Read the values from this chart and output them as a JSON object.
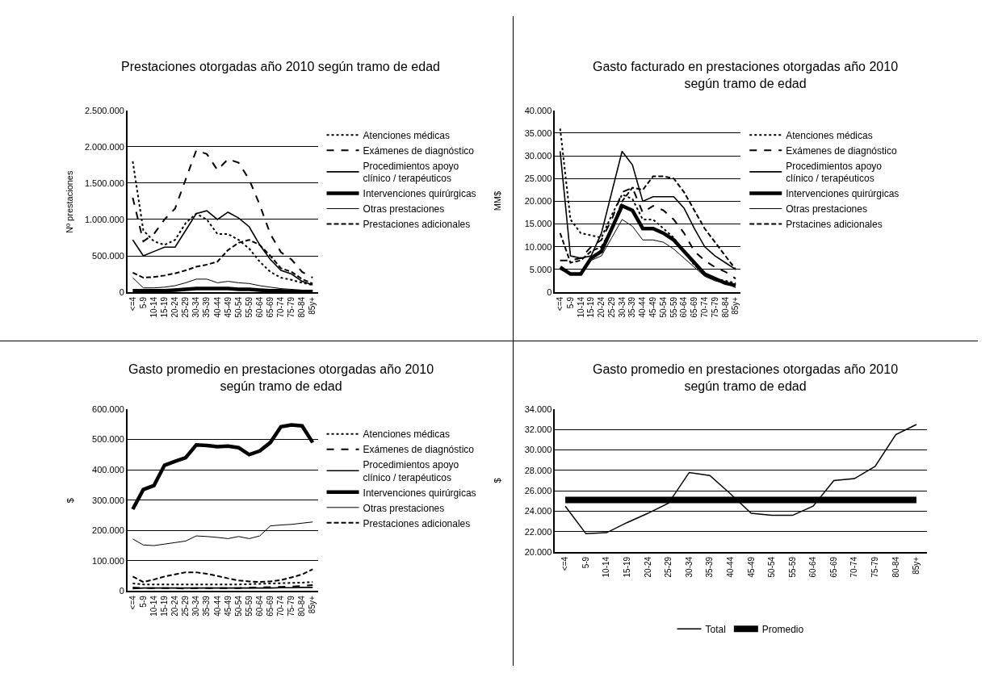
{
  "chart_data": [
    {
      "type": "line",
      "title": "Prestaciones otorgadas año 2010 según tramo de edad",
      "ylabel": "Nº prestaciones",
      "categories": [
        "<=4",
        "5-9",
        "10-14",
        "15-19",
        "20-24",
        "25-29",
        "30-34",
        "35-39",
        "40-44",
        "45-49",
        "50-54",
        "55-59",
        "60-64",
        "65-69",
        "70-74",
        "75-79",
        "80-84",
        "85y+"
      ],
      "ylim": [
        0,
        2500000
      ],
      "yticks": [
        {
          "value": 0,
          "label": "0"
        },
        {
          "value": 500000,
          "label": "500.000"
        },
        {
          "value": 1000000,
          "label": "1.000.000"
        },
        {
          "value": 1500000,
          "label": "1.500.000"
        },
        {
          "value": 2000000,
          "label": "2.000.000"
        },
        {
          "value": 2500000,
          "label": "2.500.000"
        }
      ],
      "grid": "y",
      "legend": "right",
      "marker": "none",
      "series": [
        {
          "name": "Atenciones médicas",
          "color": "#000000",
          "line_style": "dotted",
          "values": [
            1800000,
            850000,
            700000,
            650000,
            720000,
            950000,
            1080000,
            1000000,
            800000,
            800000,
            720000,
            600000,
            420000,
            280000,
            200000,
            170000,
            130000,
            100000
          ]
        },
        {
          "name": "Exámenes de diagnóstico",
          "color": "#000000",
          "line_style": "dashed",
          "values": [
            1300000,
            700000,
            800000,
            1000000,
            1150000,
            1550000,
            1950000,
            1900000,
            1680000,
            1830000,
            1780000,
            1550000,
            1200000,
            800000,
            550000,
            450000,
            280000,
            200000
          ]
        },
        {
          "name": "Procedimientos apoyo\nclínico / terapéuticos",
          "color": "#000000",
          "line_style": "solid",
          "values": [
            720000,
            500000,
            560000,
            620000,
            620000,
            850000,
            1080000,
            1120000,
            1000000,
            1100000,
            1020000,
            900000,
            650000,
            450000,
            300000,
            250000,
            150000,
            100000
          ]
        },
        {
          "name": "Intervenciones quirúrgicas",
          "color": "#000000",
          "line_style": "solid",
          "values": [
            20000,
            20000,
            20000,
            20000,
            30000,
            40000,
            50000,
            50000,
            50000,
            50000,
            40000,
            40000,
            30000,
            20000,
            20000,
            10000,
            10000,
            10000
          ]
        },
        {
          "name": "Otras prestaciones",
          "color": "#000000",
          "line_style": "solid",
          "values": [
            200000,
            60000,
            60000,
            70000,
            90000,
            130000,
            180000,
            180000,
            130000,
            150000,
            130000,
            120000,
            90000,
            70000,
            50000,
            40000,
            30000,
            20000
          ]
        },
        {
          "name": "Prestaciones adicionales",
          "color": "#000000",
          "line_style": "dashed",
          "values": [
            270000,
            200000,
            210000,
            230000,
            260000,
            300000,
            350000,
            380000,
            420000,
            580000,
            680000,
            720000,
            650000,
            500000,
            330000,
            280000,
            180000,
            120000
          ]
        }
      ]
    },
    {
      "type": "line",
      "title": "Gasto facturado en prestaciones otorgadas año 2010\nsegún tramo de edad",
      "ylabel": "MM$",
      "categories": [
        "<=4",
        "5-9",
        "10-14",
        "15-19",
        "20-24",
        "25-29",
        "30-34",
        "35-39",
        "40-44",
        "45-49",
        "50-54",
        "55-59",
        "60-64",
        "65-69",
        "70-74",
        "75-79",
        "80-84",
        "85y+"
      ],
      "ylim": [
        0,
        40000
      ],
      "yticks": [
        {
          "value": 0,
          "label": "0"
        },
        {
          "value": 5000,
          "label": "5.000"
        },
        {
          "value": 10000,
          "label": "10.000"
        },
        {
          "value": 15000,
          "label": "15.000"
        },
        {
          "value": 20000,
          "label": "20.000"
        },
        {
          "value": 25000,
          "label": "25.000"
        },
        {
          "value": 30000,
          "label": "30.000"
        },
        {
          "value": 35000,
          "label": "35.000"
        },
        {
          "value": 40000,
          "label": "40.000"
        }
      ],
      "grid": "y",
      "legend": "right",
      "marker": "none",
      "series": [
        {
          "name": "Atenciones médicas",
          "color": "#000000",
          "line_style": "dotted",
          "values": [
            36000,
            16000,
            13000,
            12500,
            12000,
            17000,
            21500,
            20500,
            16000,
            16000,
            14000,
            12000,
            9000,
            6000,
            4000,
            3000,
            2500,
            2000
          ]
        },
        {
          "name": "Exámenes de diagnóstico",
          "color": "#000000",
          "line_style": "dashed",
          "values": [
            7000,
            7000,
            7500,
            10000,
            11500,
            16000,
            22000,
            23000,
            17500,
            19000,
            18000,
            16000,
            13000,
            9000,
            7000,
            5500,
            4500,
            3000
          ]
        },
        {
          "name": "Procedimientos apoyo\nclínico / terapéuticos",
          "color": "#000000",
          "line_style": "solid",
          "values": [
            31000,
            8000,
            7500,
            8000,
            13000,
            22000,
            31000,
            28000,
            20000,
            21000,
            21000,
            21000,
            18500,
            14000,
            10000,
            8000,
            6500,
            5000
          ]
        },
        {
          "name": "Intervenciones quirúrgicas",
          "color": "#000000",
          "line_style": "solid",
          "values": [
            5500,
            4000,
            4000,
            7500,
            9000,
            14000,
            19000,
            18000,
            14000,
            14000,
            13000,
            11500,
            9000,
            6500,
            4000,
            3000,
            2000,
            1500
          ]
        },
        {
          "name": "Otras prestaciones",
          "color": "#000000",
          "line_style": "solid",
          "values": [
            5000,
            4000,
            4000,
            7000,
            8000,
            12000,
            16000,
            14500,
            11500,
            11500,
            11000,
            9500,
            7500,
            5500,
            3500,
            2500,
            2000,
            1000
          ]
        },
        {
          "name": "Prstacines adicionales",
          "color": "#000000",
          "line_style": "dashed",
          "values": [
            13000,
            6500,
            7000,
            9000,
            10000,
            14000,
            20000,
            23000,
            22500,
            25500,
            25500,
            25000,
            22000,
            18000,
            14000,
            11000,
            8000,
            5000
          ]
        }
      ]
    },
    {
      "type": "line",
      "title": "Gasto promedio en prestaciones otorgadas año 2010\nsegún tramo de edad",
      "ylabel": "$",
      "categories": [
        "<=4",
        "5-9",
        "10-14",
        "15-19",
        "20-24",
        "25-29",
        "30-34",
        "35-39",
        "40-44",
        "45-49",
        "50-54",
        "55-59",
        "60-64",
        "65-69",
        "70-74",
        "75-79",
        "80-84",
        "85y+"
      ],
      "ylim": [
        0,
        600000
      ],
      "yticks": [
        {
          "value": 0,
          "label": "0"
        },
        {
          "value": 100000,
          "label": "100.000"
        },
        {
          "value": 200000,
          "label": "200.000"
        },
        {
          "value": 300000,
          "label": "300.000"
        },
        {
          "value": 400000,
          "label": "400.000"
        },
        {
          "value": 500000,
          "label": "500.000"
        },
        {
          "value": 600000,
          "label": "600.000"
        }
      ],
      "grid": "y",
      "legend": "right",
      "marker": "none",
      "series": [
        {
          "name": "Atenciones médicas",
          "color": "#000000",
          "line_style": "dotted",
          "values": [
            25000,
            22000,
            22000,
            22000,
            22000,
            22000,
            22000,
            22000,
            22000,
            22000,
            22000,
            23000,
            24000,
            25000,
            26000,
            27000,
            28000,
            30000
          ]
        },
        {
          "name": "Exámenes de diagnóstico",
          "color": "#000000",
          "line_style": "dashed",
          "values": [
            12000,
            10000,
            10000,
            10000,
            10000,
            8000,
            10000,
            10000,
            10000,
            10000,
            10000,
            11000,
            12000,
            13000,
            14000,
            15000,
            17000,
            20000
          ]
        },
        {
          "name": "Procedimientos apoyo\nclínico / terapéuticos",
          "color": "#000000",
          "line_style": "solid",
          "values": [
            8000,
            10000,
            10000,
            10000,
            10000,
            10000,
            10000,
            10000,
            10000,
            10000,
            10000,
            10000,
            10000,
            10000,
            11000,
            11000,
            12000,
            12000
          ]
        },
        {
          "name": "Intervenciones quirúrgicas",
          "color": "#000000",
          "line_style": "solid",
          "values": [
            270000,
            335000,
            348000,
            415000,
            428000,
            440000,
            482000,
            480000,
            476000,
            478000,
            473000,
            450000,
            462000,
            490000,
            542000,
            548000,
            545000,
            490000
          ]
        },
        {
          "name": "Otras prestaciones",
          "color": "#000000",
          "line_style": "solid",
          "values": [
            172000,
            152000,
            150000,
            155000,
            160000,
            165000,
            182000,
            180000,
            177000,
            173000,
            180000,
            173000,
            182000,
            215000,
            218000,
            220000,
            224000,
            228000
          ]
        },
        {
          "name": "Prestaciones adicionales",
          "color": "#000000",
          "line_style": "dashed",
          "values": [
            48000,
            30000,
            38000,
            48000,
            55000,
            62000,
            62000,
            57000,
            50000,
            42000,
            35000,
            32000,
            30000,
            32000,
            36000,
            45000,
            55000,
            72000
          ]
        }
      ]
    },
    {
      "type": "line",
      "title": "Gasto promedio en prestaciones otorgadas año 2010\nsegún tramo de edad",
      "ylabel": "$",
      "categories": [
        "<=4",
        "5-9",
        "10-14",
        "15-19",
        "20-24",
        "25-29",
        "30-34",
        "35-39",
        "40-44",
        "45-49",
        "50-54",
        "55-59",
        "60-64",
        "65-69",
        "70-74",
        "75-79",
        "80-84",
        "85y+"
      ],
      "ylim": [
        20000,
        34000
      ],
      "yticks": [
        {
          "value": 20000,
          "label": "20.000"
        },
        {
          "value": 22000,
          "label": "22.000"
        },
        {
          "value": 24000,
          "label": "24.000"
        },
        {
          "value": 26000,
          "label": "26.000"
        },
        {
          "value": 28000,
          "label": "28.000"
        },
        {
          "value": 30000,
          "label": "30.000"
        },
        {
          "value": 32000,
          "label": "32.000"
        },
        {
          "value": 34000,
          "label": "34.000"
        }
      ],
      "grid": "y",
      "legend": "bottom",
      "marker": "none",
      "series": [
        {
          "name": "Total",
          "color": "#000000",
          "line_style": "solid",
          "values": [
            24500,
            21800,
            21900,
            22900,
            23800,
            24800,
            27800,
            27500,
            25700,
            23800,
            23600,
            23600,
            24500,
            27000,
            27200,
            28400,
            31500,
            32500
          ]
        },
        {
          "name": "Promedio",
          "color": "#000000",
          "line_style": "solid",
          "values": [
            25100,
            25100,
            25100,
            25100,
            25100,
            25100,
            25100,
            25100,
            25100,
            25100,
            25100,
            25100,
            25100,
            25100,
            25100,
            25100,
            25100,
            25100
          ]
        }
      ]
    }
  ]
}
